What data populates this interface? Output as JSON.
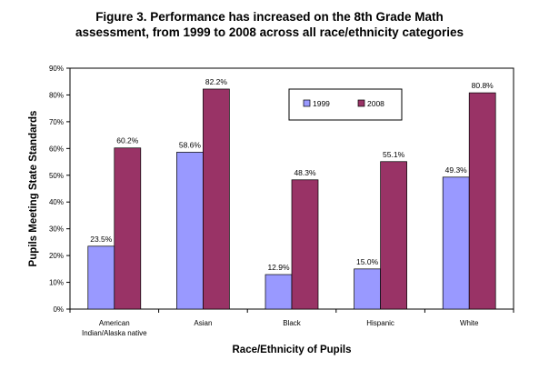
{
  "chart_data": {
    "type": "bar",
    "title_line1": "Figure 3.  Performance has increased on the 8th Grade Math",
    "title_line2": "assessment, from 1999 to 2008 across all race/ethnicity categories",
    "xlabel": "Race/Ethnicity of Pupils",
    "ylabel": "Pupils Meeting State Standards",
    "ylim": [
      0,
      90
    ],
    "yticks": [
      "0%",
      "10%",
      "20%",
      "30%",
      "40%",
      "50%",
      "60%",
      "70%",
      "80%",
      "90%"
    ],
    "categories": [
      [
        "American",
        "Indian/Alaska native"
      ],
      [
        "Asian"
      ],
      [
        "Black"
      ],
      [
        "Hispanic"
      ],
      [
        "White"
      ]
    ],
    "series": [
      {
        "name": "1999",
        "color": "#9999ff",
        "values": [
          23.5,
          58.6,
          12.9,
          15.0,
          49.3
        ],
        "labels": [
          "23.5%",
          "58.6%",
          "12.9%",
          "15.0%",
          "49.3%"
        ]
      },
      {
        "name": "2008",
        "color": "#993366",
        "values": [
          60.2,
          82.2,
          48.3,
          55.1,
          80.8
        ],
        "labels": [
          "60.2%",
          "82.2%",
          "48.3%",
          "55.1%",
          "80.8%"
        ]
      }
    ],
    "grid": false,
    "legend": "top-center"
  }
}
